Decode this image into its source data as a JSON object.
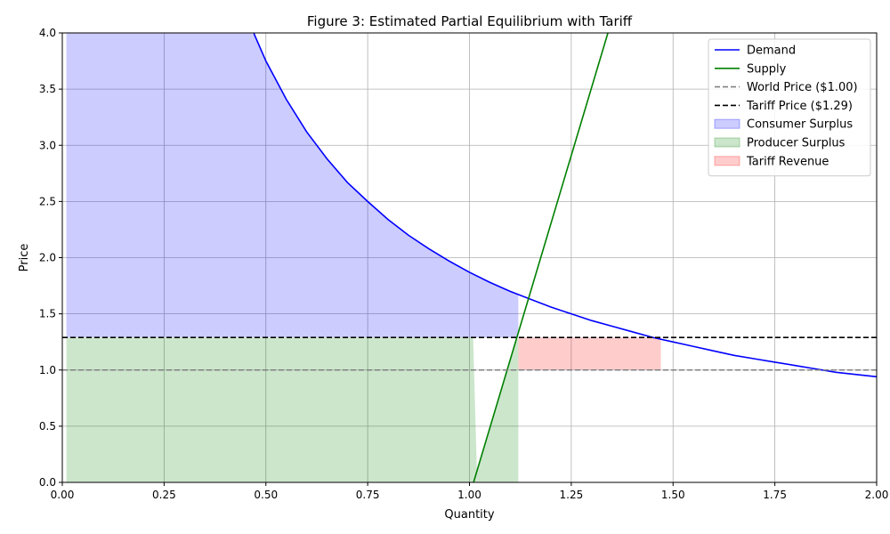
{
  "chart_data": {
    "type": "line",
    "title": "Figure 3: Estimated Partial Equilibrium with Tariff",
    "xlabel": "Quantity",
    "ylabel": "Price",
    "xlim": [
      0,
      2
    ],
    "ylim": [
      0,
      4
    ],
    "xticks": [
      0,
      0.25,
      0.5,
      0.75,
      1.0,
      1.25,
      1.5,
      1.75,
      2.0
    ],
    "xtick_labels": [
      "0.00",
      "0.25",
      "0.50",
      "0.75",
      "1.00",
      "1.25",
      "1.50",
      "1.75",
      "2.00"
    ],
    "yticks": [
      0,
      0.5,
      1.0,
      1.5,
      2.0,
      2.5,
      3.0,
      3.5,
      4.0
    ],
    "ytick_labels": [
      "0.0",
      "0.5",
      "1.0",
      "1.5",
      "2.0",
      "2.5",
      "3.0",
      "3.5",
      "4.0"
    ],
    "grid": true,
    "legend_position": "top-right",
    "series": [
      {
        "name": "Demand",
        "style": "solid",
        "color": "#0000ff",
        "x": [
          0.47,
          0.5,
          0.55,
          0.6,
          0.65,
          0.7,
          0.75,
          0.8,
          0.85,
          0.9,
          0.95,
          1.0,
          1.05,
          1.1,
          1.15,
          1.2,
          1.25,
          1.3,
          1.35,
          1.4,
          1.45,
          1.5,
          1.55,
          1.6,
          1.65,
          1.7,
          1.75,
          1.8,
          1.85,
          1.9,
          1.95,
          2.0
        ],
        "y": [
          4.0,
          3.75,
          3.41,
          3.12,
          2.88,
          2.67,
          2.5,
          2.34,
          2.2,
          2.08,
          1.97,
          1.87,
          1.78,
          1.7,
          1.63,
          1.56,
          1.5,
          1.44,
          1.39,
          1.34,
          1.29,
          1.25,
          1.21,
          1.17,
          1.13,
          1.1,
          1.07,
          1.04,
          1.01,
          0.98,
          0.96,
          0.94
        ]
      },
      {
        "name": "Supply",
        "style": "solid",
        "color": "#008000",
        "x": [
          1.01,
          1.34
        ],
        "y": [
          0.0,
          4.0
        ]
      },
      {
        "name": "World Price ($1.00)",
        "style": "dashed",
        "color": "#808080",
        "x": [
          0,
          2
        ],
        "y": [
          1.0,
          1.0
        ]
      },
      {
        "name": "Tariff Price ($1.29)",
        "style": "dashed",
        "color": "#000000",
        "x": [
          0,
          2
        ],
        "y": [
          1.29,
          1.29
        ]
      }
    ],
    "areas": [
      {
        "name": "Consumer Surplus",
        "color": "#0000ff",
        "opacity": 0.2,
        "x_from": 0.01,
        "x_to": 1.12,
        "lower": 1.29,
        "upper": "demand"
      },
      {
        "name": "Producer Surplus",
        "color": "#008000",
        "opacity": 0.2,
        "x_from": 0.01,
        "x_to": 1.12,
        "lower": 0,
        "upper": "supply_capped"
      },
      {
        "name": "Tariff Revenue",
        "color": "#ff0000",
        "opacity": 0.2,
        "x_from": 1.12,
        "x_to": 1.47,
        "lower": 1.0,
        "upper": 1.29
      }
    ]
  }
}
